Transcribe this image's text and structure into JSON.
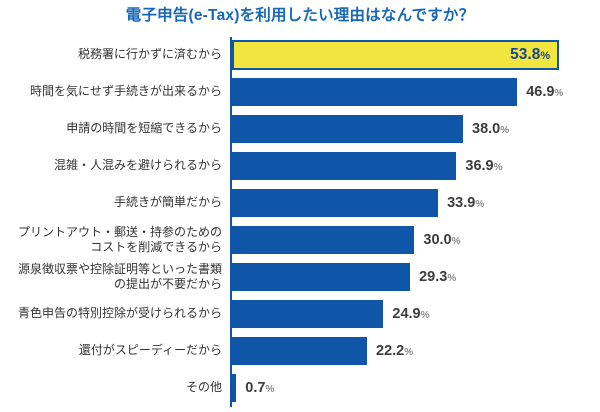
{
  "chart_data": {
    "type": "bar",
    "orientation": "horizontal",
    "title": "電子申告(e-Tax)を利用したい理由はなんですか？",
    "unit": "%",
    "xlim": [
      0,
      55
    ],
    "grid": false,
    "legend": "none",
    "categories": [
      "税務署に行かずに済むから",
      "時間を気にせず手続きが出来るから",
      "申請の時間を短縮できるから",
      "混雑・人混みを避けられるから",
      "手続きが簡単だから",
      "プリントアウト・郵送・持参のための\nコストを削減できるから",
      "源泉徴収票や控除証明等といった書類\nの提出が不要だから",
      "青色申告の特別控除が受けられるから",
      "還付がスピーディーだから",
      "その他"
    ],
    "values": [
      53.8,
      46.9,
      38.0,
      36.9,
      33.9,
      30.0,
      29.3,
      24.9,
      22.2,
      0.7
    ],
    "value_labels": [
      "53.8",
      "46.9",
      "38.0",
      "36.9",
      "33.9",
      "30.0",
      "29.3",
      "24.9",
      "22.2",
      "0.7"
    ],
    "highlight_index": 0,
    "colors": {
      "background": "#ffffff",
      "title": "#1768b9",
      "bar": "#1056a8",
      "axis": "#1056a8",
      "highlight_fill": "#f2e53f",
      "highlight_border": "#1056a8",
      "highlight_value_text": "#17488c",
      "value_text": "#3d3d3d",
      "percent_sign": "#8a8a8a",
      "label_text": "#333333"
    }
  }
}
